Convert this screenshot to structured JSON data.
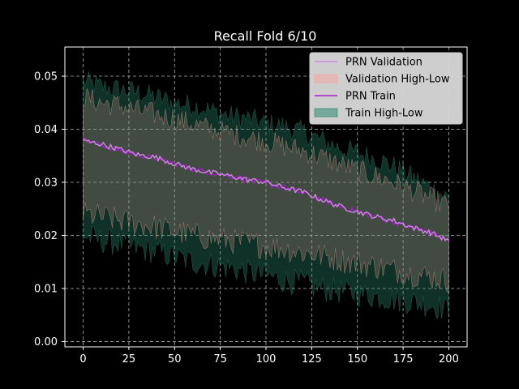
{
  "chart_data": {
    "type": "line",
    "title": "Recall Fold 6/10",
    "xlabel": "",
    "ylabel": "",
    "xlim": [
      -10,
      210
    ],
    "ylim": [
      -0.001,
      0.0555
    ],
    "xticks": [
      0,
      25,
      50,
      75,
      100,
      125,
      150,
      175,
      200
    ],
    "yticks": [
      0.0,
      0.01,
      0.02,
      0.03,
      0.04,
      0.05
    ],
    "xtick_labels": [
      "0",
      "25",
      "50",
      "75",
      "100",
      "125",
      "150",
      "175",
      "200"
    ],
    "ytick_labels": [
      "0.00",
      "0.01",
      "0.02",
      "0.03",
      "0.04",
      "0.05"
    ],
    "grid": true,
    "legend_position": "top-right",
    "series": [
      {
        "name": "PRN Validation",
        "kind": "line",
        "color": "#cc88dd",
        "x": [
          0,
          10,
          20,
          30,
          40,
          50,
          60,
          70,
          80,
          90,
          100,
          110,
          120,
          130,
          140,
          150,
          160,
          170,
          180,
          190,
          200
        ],
        "values": [
          0.0378,
          0.0372,
          0.0362,
          0.0352,
          0.0347,
          0.0335,
          0.0325,
          0.0318,
          0.0312,
          0.0305,
          0.03,
          0.029,
          0.0282,
          0.0268,
          0.0255,
          0.0245,
          0.0235,
          0.0228,
          0.0215,
          0.0205,
          0.019
        ]
      },
      {
        "name": "Validation High-Low",
        "kind": "band",
        "color": "#f4a7a0",
        "x": [
          0,
          10,
          20,
          30,
          40,
          50,
          60,
          70,
          80,
          90,
          100,
          110,
          120,
          130,
          140,
          150,
          160,
          170,
          180,
          190,
          200
        ],
        "high": [
          0.046,
          0.045,
          0.0445,
          0.0435,
          0.0428,
          0.042,
          0.041,
          0.04,
          0.0392,
          0.0385,
          0.0378,
          0.0368,
          0.036,
          0.0348,
          0.0335,
          0.0322,
          0.0312,
          0.03,
          0.0285,
          0.027,
          0.0255
        ],
        "low": [
          0.024,
          0.0235,
          0.0228,
          0.0222,
          0.0215,
          0.0208,
          0.02,
          0.0195,
          0.019,
          0.0185,
          0.018,
          0.0175,
          0.0168,
          0.0162,
          0.0155,
          0.0148,
          0.0142,
          0.0135,
          0.0128,
          0.0122,
          0.0115
        ]
      },
      {
        "name": "PRN Train",
        "kind": "line",
        "color": "#a020c8",
        "x": [
          0,
          10,
          20,
          30,
          40,
          50,
          60,
          70,
          80,
          90,
          100,
          110,
          120,
          130,
          140,
          150,
          160,
          170,
          180,
          190,
          200
        ],
        "values": [
          0.038,
          0.037,
          0.036,
          0.0352,
          0.0345,
          0.0335,
          0.0325,
          0.0318,
          0.0312,
          0.0305,
          0.0298,
          0.029,
          0.028,
          0.0268,
          0.0255,
          0.0245,
          0.0235,
          0.0225,
          0.0215,
          0.0205,
          0.019
        ]
      },
      {
        "name": "Train High-Low",
        "kind": "band",
        "color": "#2e8b6f",
        "x": [
          0,
          10,
          20,
          30,
          40,
          50,
          60,
          70,
          80,
          90,
          100,
          110,
          120,
          130,
          140,
          150,
          160,
          170,
          180,
          190,
          200
        ],
        "high": [
          0.049,
          0.048,
          0.0475,
          0.047,
          0.046,
          0.045,
          0.0445,
          0.0435,
          0.0425,
          0.042,
          0.041,
          0.0405,
          0.0395,
          0.038,
          0.0365,
          0.0355,
          0.0345,
          0.033,
          0.031,
          0.029,
          0.027
        ],
        "low": [
          0.02,
          0.019,
          0.0185,
          0.0175,
          0.017,
          0.016,
          0.015,
          0.0145,
          0.014,
          0.013,
          0.0125,
          0.0115,
          0.011,
          0.01,
          0.0095,
          0.009,
          0.0085,
          0.008,
          0.0075,
          0.007,
          0.006
        ]
      }
    ]
  }
}
